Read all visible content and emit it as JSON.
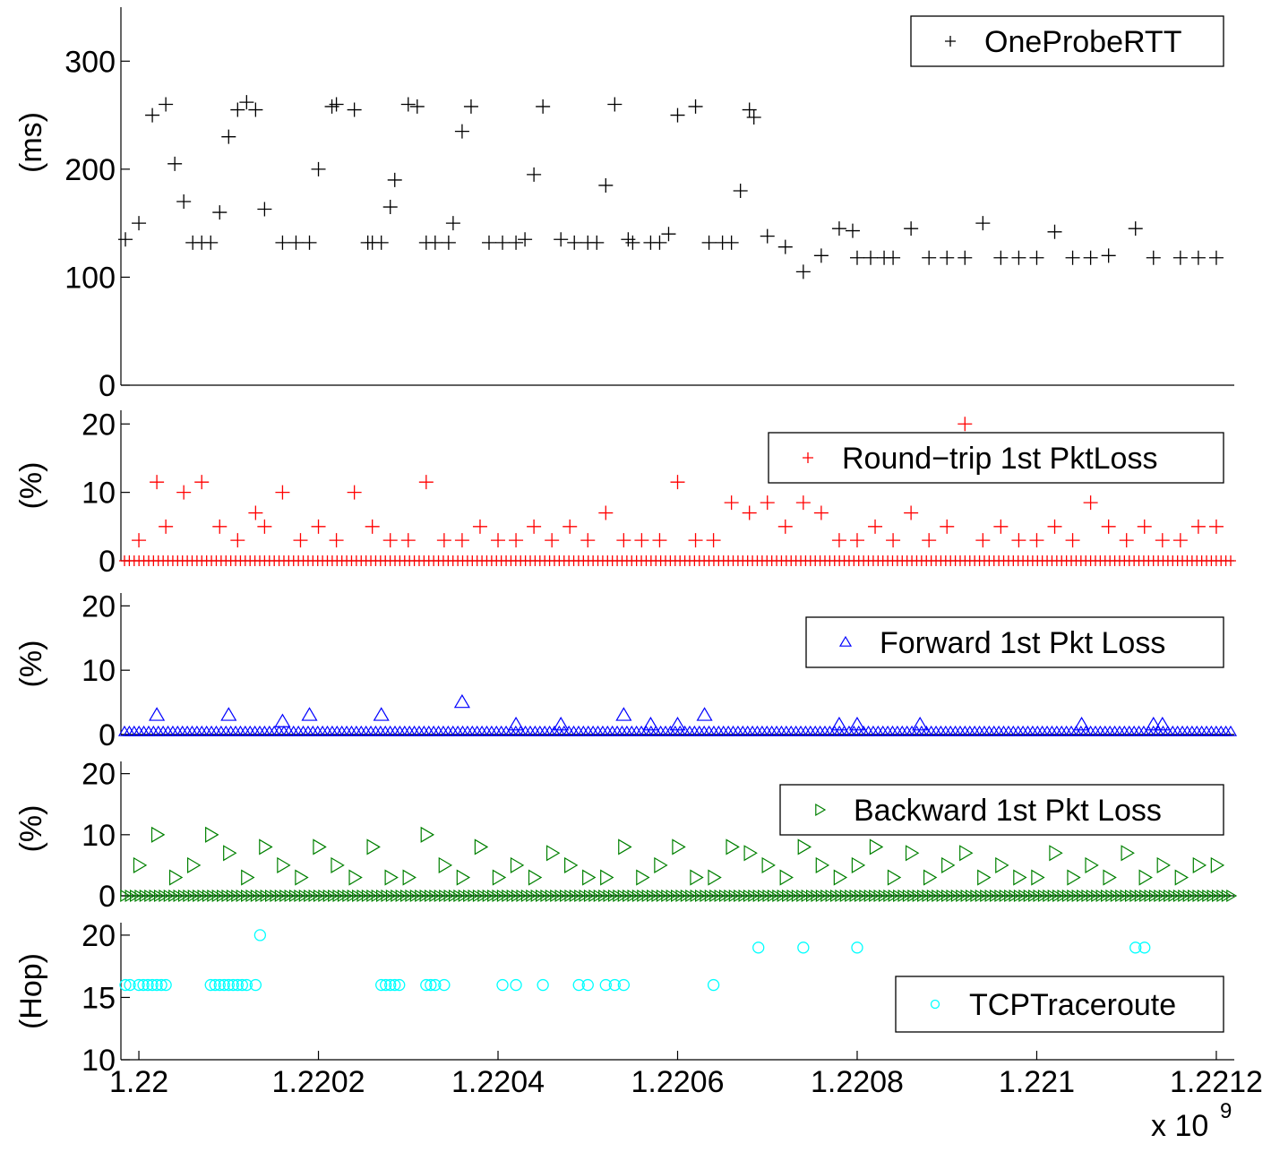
{
  "chart_data": [
    {
      "type": "scatter",
      "ylabel": "(ms)",
      "ylim": [
        0,
        350
      ],
      "yticks": [
        "0",
        "100",
        "200",
        "300"
      ],
      "xlim": [
        1.21998,
        1.22122
      ],
      "legend": "top-right",
      "series": [
        {
          "name": "OneProbeRTT",
          "marker": "plus",
          "color": "#000000",
          "x": [
            1.219985,
            1.22,
            1.220015,
            1.22003,
            1.22004,
            1.22005,
            1.22006,
            1.22007,
            1.22008,
            1.22009,
            1.2201,
            1.22011,
            1.22012,
            1.22013,
            1.22014,
            1.22016,
            1.220175,
            1.22019,
            1.2202,
            1.220215,
            1.22022,
            1.22024,
            1.220255,
            1.22026,
            1.22027,
            1.22028,
            1.220285,
            1.2203,
            1.22031,
            1.22032,
            1.22033,
            1.220345,
            1.22035,
            1.22036,
            1.22037,
            1.22039,
            1.220405,
            1.22042,
            1.22043,
            1.22044,
            1.22045,
            1.22047,
            1.220485,
            1.2205,
            1.22051,
            1.22052,
            1.22053,
            1.220545,
            1.22055,
            1.22057,
            1.22058,
            1.22059,
            1.2206,
            1.22062,
            1.220635,
            1.22065,
            1.22066,
            1.22067,
            1.22068,
            1.220685,
            1.2207,
            1.22072,
            1.22074,
            1.22076,
            1.22078,
            1.220795,
            1.2208,
            1.220815,
            1.22083,
            1.22084,
            1.22086,
            1.22088,
            1.2209,
            1.22092,
            1.22094,
            1.22096,
            1.22098,
            1.221,
            1.22102,
            1.22104,
            1.22106,
            1.22108,
            1.22111,
            1.22113,
            1.22116,
            1.22118,
            1.2212
          ],
          "y": [
            135,
            150,
            250,
            260,
            205,
            170,
            132,
            132,
            132,
            160,
            230,
            255,
            262,
            255,
            163,
            132,
            132,
            132,
            200,
            258,
            260,
            255,
            132,
            132,
            132,
            165,
            190,
            260,
            258,
            132,
            132,
            132,
            150,
            235,
            258,
            132,
            132,
            132,
            135,
            195,
            258,
            135,
            132,
            132,
            132,
            185,
            260,
            135,
            132,
            132,
            132,
            140,
            250,
            258,
            132,
            132,
            132,
            180,
            255,
            248,
            138,
            128,
            105,
            120,
            145,
            143,
            118,
            118,
            118,
            118,
            145,
            118,
            118,
            118,
            150,
            118,
            118,
            118,
            142,
            118,
            118,
            120,
            145,
            118,
            118,
            118,
            118
          ]
        }
      ]
    },
    {
      "type": "scatter",
      "ylabel": "(%)",
      "ylim": [
        0,
        22
      ],
      "yticks": [
        "0",
        "10",
        "20"
      ],
      "xlim": [
        1.21998,
        1.22122
      ],
      "legend": "top-right",
      "series": [
        {
          "name": "Round−trip 1st PktLoss",
          "marker": "plus",
          "color": "#ff0000",
          "x": [
            1.22,
            1.22002,
            1.22003,
            1.22005,
            1.22007,
            1.22009,
            1.22011,
            1.22013,
            1.22014,
            1.22016,
            1.22018,
            1.2202,
            1.22022,
            1.22024,
            1.22026,
            1.22028,
            1.2203,
            1.22032,
            1.22034,
            1.22036,
            1.22038,
            1.2204,
            1.22042,
            1.22044,
            1.22046,
            1.22048,
            1.2205,
            1.22052,
            1.22054,
            1.22056,
            1.22058,
            1.2206,
            1.22062,
            1.22064,
            1.22066,
            1.22068,
            1.2207,
            1.22072,
            1.22074,
            1.22076,
            1.22078,
            1.2208,
            1.22082,
            1.22084,
            1.22086,
            1.22088,
            1.2209,
            1.22092,
            1.22094,
            1.22096,
            1.22098,
            1.221,
            1.22102,
            1.22104,
            1.22106,
            1.22108,
            1.2211,
            1.22112,
            1.22114,
            1.22116,
            1.22118,
            1.2212
          ],
          "y": [
            3,
            11.5,
            5,
            10,
            11.5,
            5,
            3,
            7,
            5,
            10,
            3,
            5,
            3,
            10,
            5,
            3,
            3,
            11.5,
            3,
            3,
            5,
            3,
            3,
            5,
            3,
            5,
            3,
            7,
            3,
            3,
            3,
            11.5,
            3,
            3,
            8.5,
            7,
            8.5,
            5,
            8.5,
            7,
            3,
            3,
            5,
            3,
            7,
            3,
            5,
            20,
            3,
            5,
            3,
            3,
            5,
            3,
            8.5,
            5,
            3,
            5,
            3,
            3,
            5,
            5
          ]
        }
      ]
    },
    {
      "type": "scatter",
      "ylabel": "(%)",
      "ylim": [
        0,
        22
      ],
      "yticks": [
        "0",
        "10",
        "20"
      ],
      "xlim": [
        1.21998,
        1.22122
      ],
      "legend": "top-right",
      "series": [
        {
          "name": "Forward 1st Pkt Loss",
          "marker": "triangle-up",
          "color": "#0000ff",
          "x": [
            1.22002,
            1.2201,
            1.22016,
            1.22019,
            1.22027,
            1.22036,
            1.22042,
            1.22047,
            1.22054,
            1.22057,
            1.2206,
            1.22063,
            1.22078,
            1.2208,
            1.22087,
            1.22105,
            1.22113,
            1.22114
          ],
          "y": [
            3,
            3,
            2,
            3,
            3,
            5,
            1.5,
            1.5,
            3,
            1.5,
            1.5,
            3,
            1.5,
            1.5,
            1.5,
            1.5,
            1.5,
            1.5
          ]
        }
      ]
    },
    {
      "type": "scatter",
      "ylabel": "(%)",
      "ylim": [
        0,
        22
      ],
      "yticks": [
        "0",
        "10",
        "20"
      ],
      "xlim": [
        1.21998,
        1.22122
      ],
      "legend": "top-right",
      "series": [
        {
          "name": "Backward 1st Pkt Loss",
          "marker": "triangle-right",
          "color": "#008000",
          "x": [
            1.22,
            1.22002,
            1.22004,
            1.22006,
            1.22008,
            1.2201,
            1.22012,
            1.22014,
            1.22016,
            1.22018,
            1.2202,
            1.22022,
            1.22024,
            1.22026,
            1.22028,
            1.2203,
            1.22032,
            1.22034,
            1.22036,
            1.22038,
            1.2204,
            1.22042,
            1.22044,
            1.22046,
            1.22048,
            1.2205,
            1.22052,
            1.22054,
            1.22056,
            1.22058,
            1.2206,
            1.22062,
            1.22064,
            1.22066,
            1.22068,
            1.2207,
            1.22072,
            1.22074,
            1.22076,
            1.22078,
            1.2208,
            1.22082,
            1.22084,
            1.22086,
            1.22088,
            1.2209,
            1.22092,
            1.22094,
            1.22096,
            1.22098,
            1.221,
            1.22102,
            1.22104,
            1.22106,
            1.22108,
            1.2211,
            1.22112,
            1.22114,
            1.22116,
            1.22118,
            1.2212
          ],
          "y": [
            5,
            10,
            3,
            5,
            10,
            7,
            3,
            8,
            5,
            3,
            8,
            5,
            3,
            8,
            3,
            3,
            10,
            5,
            3,
            8,
            3,
            5,
            3,
            7,
            5,
            3,
            3,
            8,
            3,
            5,
            8,
            3,
            3,
            8,
            7,
            5,
            3,
            8,
            5,
            3,
            5,
            8,
            3,
            7,
            3,
            5,
            7,
            3,
            5,
            3,
            3,
            7,
            3,
            5,
            3,
            7,
            3,
            5,
            3,
            5,
            5
          ]
        }
      ]
    },
    {
      "type": "scatter",
      "ylabel": "(Hop)",
      "ylim": [
        10,
        21
      ],
      "yticks": [
        "10",
        "15",
        "20"
      ],
      "xlim": [
        1.21998,
        1.22122
      ],
      "xticks": [
        "1.22",
        "1.2202",
        "1.2204",
        "1.2206",
        "1.2208",
        "1.221",
        "1.2212"
      ],
      "xscale_label": "x 10",
      "xscale_exp": "9",
      "legend": "right",
      "series": [
        {
          "name": "TCPTraceroute",
          "marker": "circle",
          "color": "#00ffff",
          "x": [
            1.219985,
            1.21999,
            1.22,
            1.220005,
            1.22001,
            1.220015,
            1.22002,
            1.220025,
            1.22003,
            1.22008,
            1.220085,
            1.22009,
            1.220095,
            1.2201,
            1.220105,
            1.22011,
            1.220115,
            1.22012,
            1.22013,
            1.220135,
            1.22027,
            1.220275,
            1.22028,
            1.220285,
            1.22029,
            1.22032,
            1.220325,
            1.22033,
            1.22034,
            1.220405,
            1.22042,
            1.22045,
            1.22049,
            1.2205,
            1.22052,
            1.22053,
            1.22054,
            1.22064,
            1.22069,
            1.22074,
            1.2208,
            1.22111,
            1.22112
          ],
          "y": [
            16,
            16,
            16,
            16,
            16,
            16,
            16,
            16,
            16,
            16,
            16,
            16,
            16,
            16,
            16,
            16,
            16,
            16,
            16,
            20,
            16,
            16,
            16,
            16,
            16,
            16,
            16,
            16,
            16,
            16,
            16,
            16,
            16,
            16,
            16,
            16,
            16,
            16,
            19,
            19,
            19,
            19,
            19
          ]
        }
      ]
    }
  ]
}
